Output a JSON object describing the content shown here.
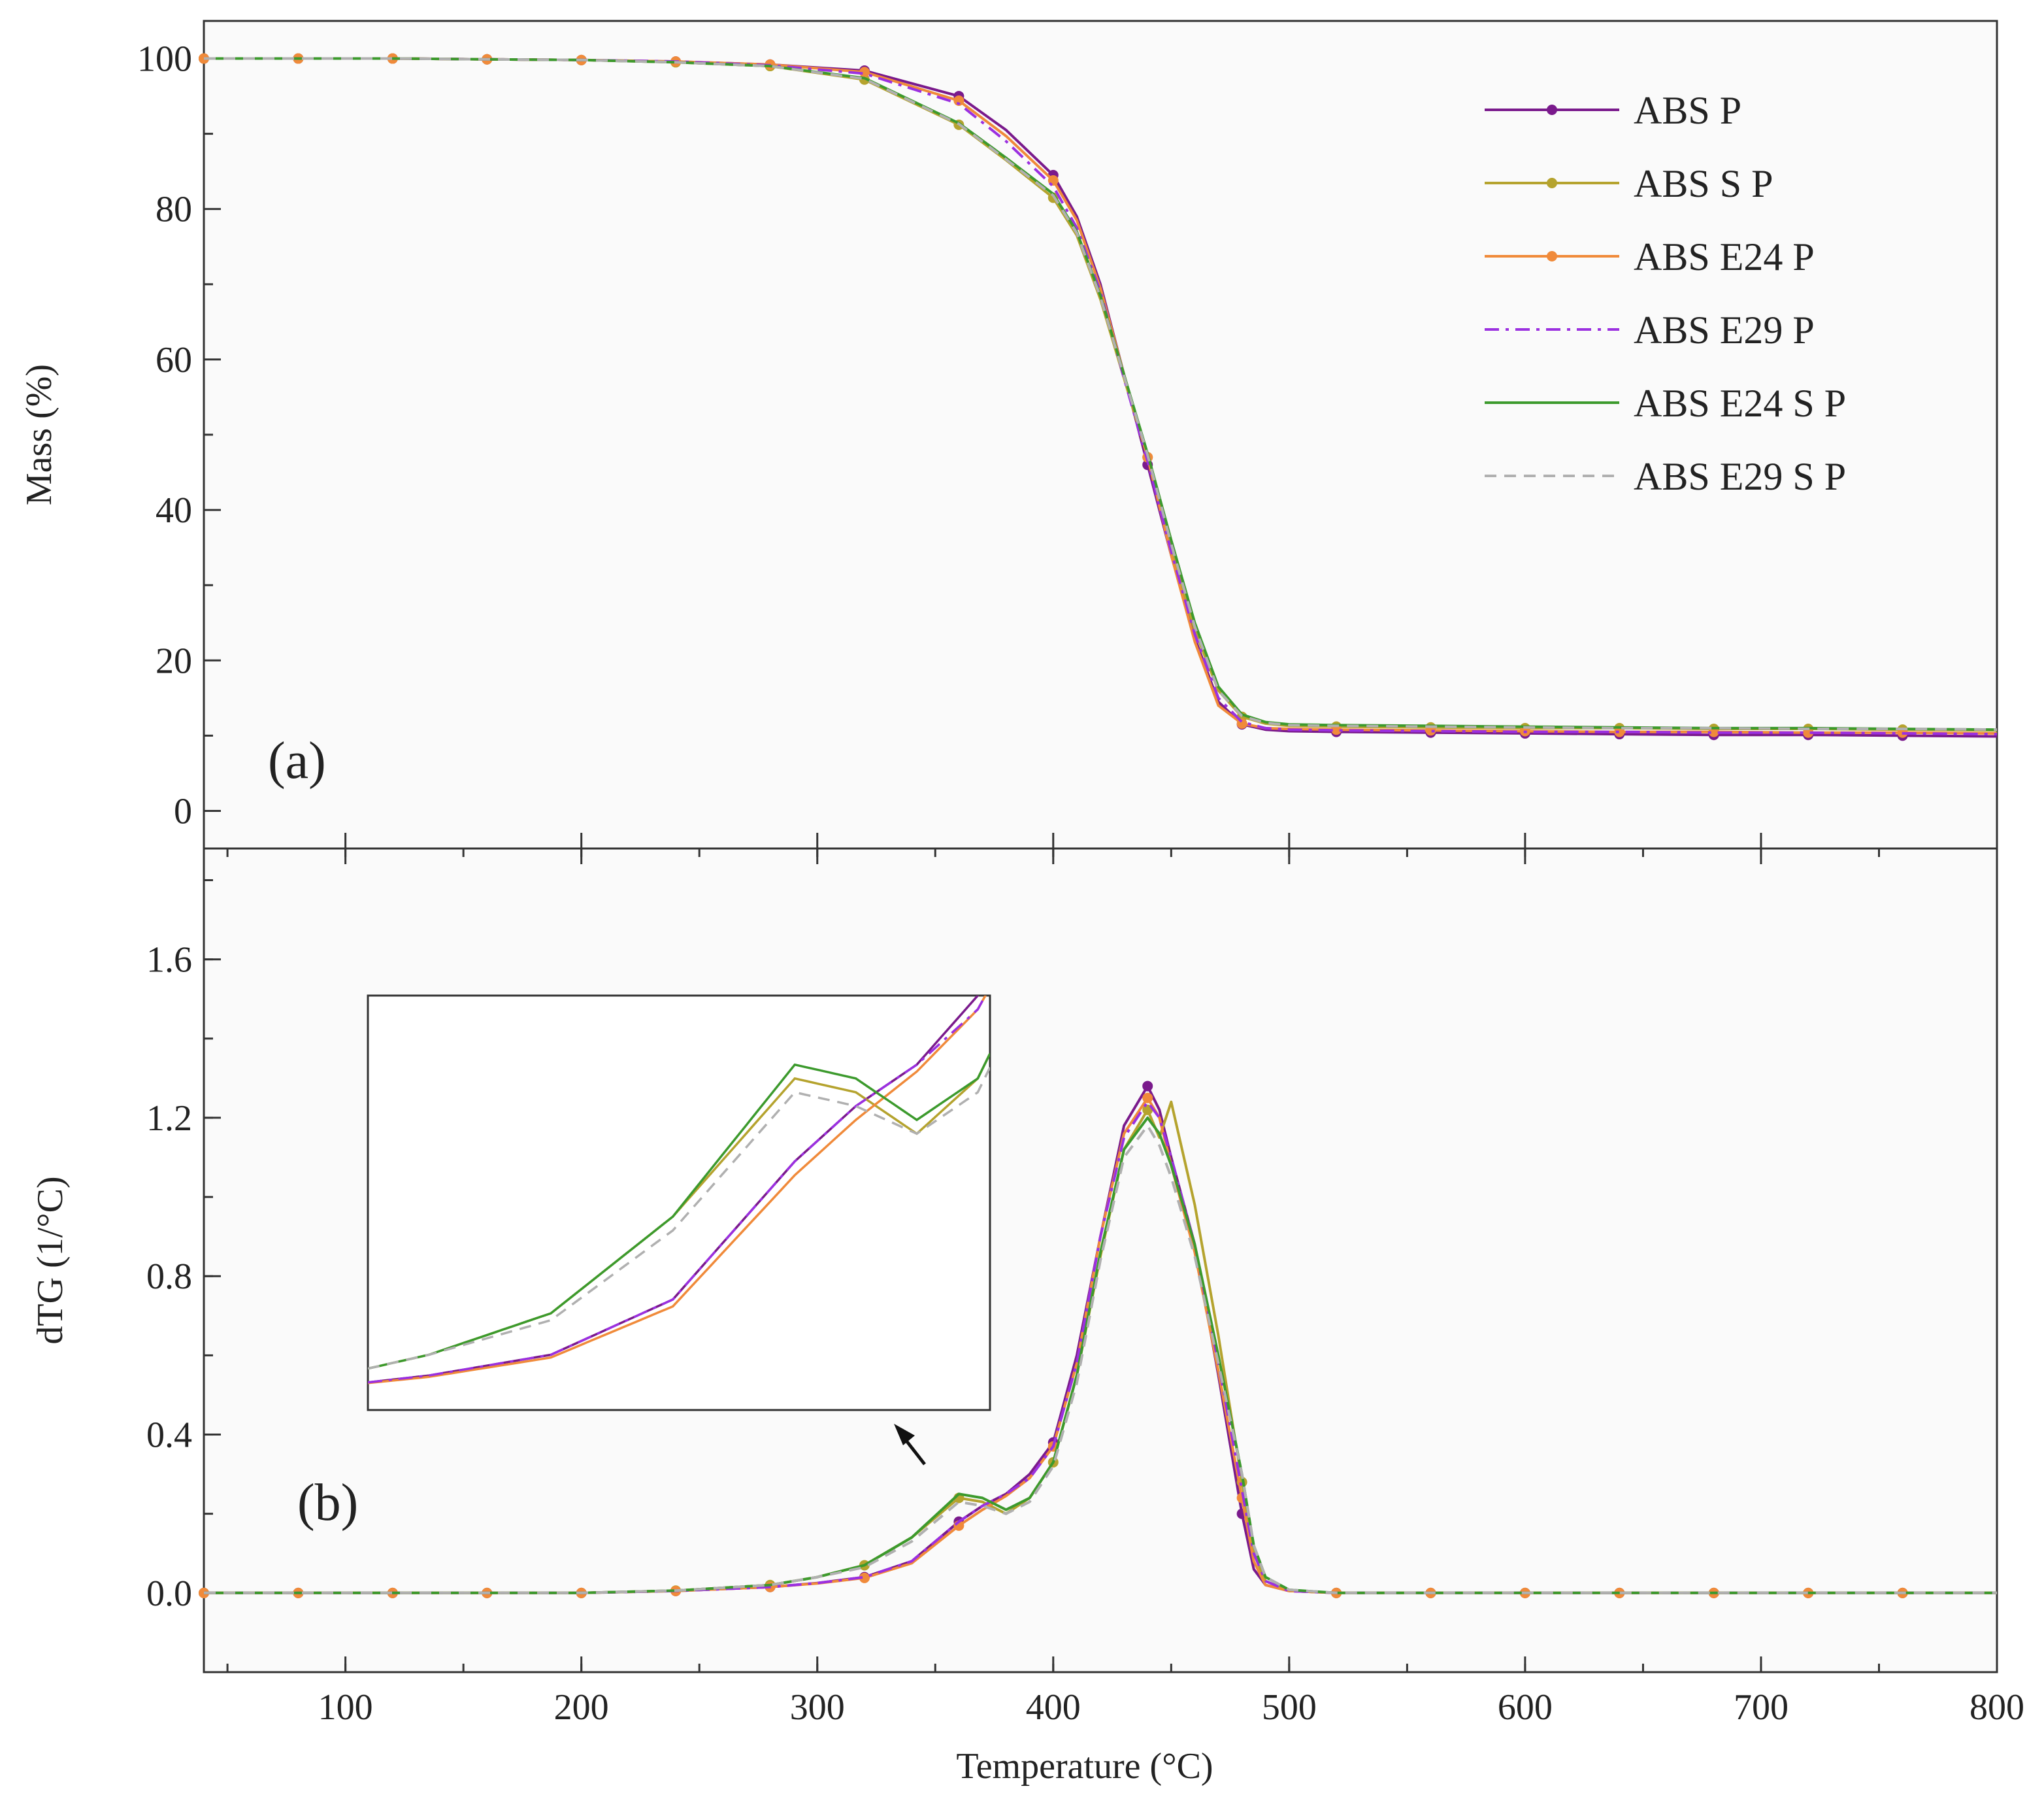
{
  "chart_data": [
    {
      "panel": "a",
      "panel_label": "(a)",
      "type": "line",
      "ylabel": "Mass (%)",
      "xlabel": "Temperature (°C)",
      "xlim": [
        40,
        800
      ],
      "ylim": [
        -5,
        105
      ],
      "yticks": [
        0,
        20,
        40,
        60,
        80,
        100
      ],
      "grid": false,
      "legend_position": "top-right",
      "series": [
        {
          "name": "ABS P",
          "color": "#7a1a8c",
          "dash": "solid",
          "marker": "dot",
          "x": [
            40,
            80,
            120,
            160,
            200,
            240,
            280,
            320,
            360,
            380,
            400,
            410,
            420,
            430,
            440,
            450,
            460,
            470,
            480,
            490,
            500,
            520,
            560,
            600,
            640,
            680,
            720,
            760,
            800
          ],
          "y": [
            100,
            100,
            100,
            99.9,
            99.8,
            99.6,
            99.2,
            98.4,
            95.0,
            90.5,
            84.5,
            79,
            70,
            58,
            46,
            34,
            23,
            14.5,
            11.5,
            10.8,
            10.6,
            10.5,
            10.4,
            10.3,
            10.2,
            10.1,
            10.1,
            10.0,
            9.9
          ]
        },
        {
          "name": "ABS S P",
          "color": "#b5a32e",
          "dash": "solid",
          "marker": "square",
          "x": [
            40,
            80,
            120,
            160,
            200,
            240,
            280,
            320,
            360,
            380,
            400,
            410,
            420,
            430,
            440,
            450,
            460,
            470,
            480,
            490,
            500,
            520,
            560,
            600,
            640,
            680,
            720,
            760,
            800
          ],
          "y": [
            100,
            100,
            100,
            99.9,
            99.8,
            99.5,
            99.0,
            97.2,
            91.2,
            86.5,
            81.5,
            76.5,
            68,
            57.5,
            47,
            35,
            24,
            16,
            12.5,
            11.6,
            11.3,
            11.2,
            11.1,
            11.0,
            11.0,
            10.9,
            10.9,
            10.8,
            10.7
          ]
        },
        {
          "name": "ABS E24 P",
          "color": "#f08a3a",
          "dash": "solid",
          "marker": "triangle",
          "x": [
            40,
            80,
            120,
            160,
            200,
            240,
            280,
            320,
            360,
            380,
            400,
            410,
            420,
            430,
            440,
            450,
            460,
            470,
            480,
            490,
            500,
            520,
            560,
            600,
            640,
            680,
            720,
            760,
            800
          ],
          "y": [
            100,
            100,
            100,
            99.9,
            99.8,
            99.6,
            99.2,
            98.2,
            94.4,
            89.7,
            83.8,
            78.5,
            69.5,
            58,
            47,
            34,
            22.5,
            14,
            11.6,
            11.0,
            10.9,
            10.8,
            10.7,
            10.6,
            10.5,
            10.5,
            10.4,
            10.4,
            10.3
          ]
        },
        {
          "name": "ABS E29 P",
          "color": "#9b30e0",
          "dash": "dashdot",
          "marker": "none",
          "x": [
            40,
            80,
            120,
            160,
            200,
            240,
            280,
            320,
            360,
            380,
            400,
            410,
            420,
            430,
            440,
            450,
            460,
            470,
            480,
            490,
            500,
            520,
            560,
            600,
            640,
            680,
            720,
            760,
            800
          ],
          "y": [
            100,
            100,
            100,
            99.9,
            99.8,
            99.6,
            99.1,
            98.0,
            94.0,
            89.0,
            83.0,
            77.5,
            69,
            57.5,
            46.5,
            34.5,
            23.5,
            15,
            11.8,
            11.0,
            10.8,
            10.7,
            10.6,
            10.5,
            10.5,
            10.4,
            10.4,
            10.3,
            10.2
          ]
        },
        {
          "name": "ABS E24 S P",
          "color": "#3c9a2d",
          "dash": "solid",
          "marker": "none",
          "x": [
            40,
            80,
            120,
            160,
            200,
            240,
            280,
            320,
            360,
            380,
            400,
            410,
            420,
            430,
            440,
            450,
            460,
            470,
            480,
            490,
            500,
            520,
            560,
            600,
            640,
            680,
            720,
            760,
            800
          ],
          "y": [
            100,
            100,
            100,
            99.9,
            99.8,
            99.5,
            99.0,
            97.4,
            91.4,
            86.8,
            82.0,
            77,
            68.5,
            58,
            47.5,
            36,
            25,
            16.5,
            12.8,
            11.8,
            11.5,
            11.4,
            11.3,
            11.2,
            11.1,
            11.0,
            11.0,
            10.9,
            10.8
          ]
        },
        {
          "name": "ABS E29 S P",
          "color": "#b0b0b0",
          "dash": "dashed",
          "marker": "none",
          "x": [
            40,
            80,
            120,
            160,
            200,
            240,
            280,
            320,
            360,
            380,
            400,
            410,
            420,
            430,
            440,
            450,
            460,
            470,
            480,
            490,
            500,
            520,
            560,
            600,
            640,
            680,
            720,
            760,
            800
          ],
          "y": [
            100,
            100,
            100,
            99.9,
            99.8,
            99.5,
            99.0,
            97.3,
            91.3,
            86.6,
            81.8,
            76.8,
            68.3,
            57.8,
            47.3,
            35.5,
            24.5,
            16,
            12.6,
            11.7,
            11.4,
            11.3,
            11.2,
            11.1,
            11.0,
            11.0,
            10.9,
            10.9,
            10.8
          ]
        }
      ]
    },
    {
      "panel": "b",
      "panel_label": "(b)",
      "type": "line",
      "ylabel": "dTG (1/°C)",
      "xlabel": "Temperature (°C)",
      "xlim": [
        40,
        800
      ],
      "ylim": [
        -0.2,
        1.88
      ],
      "yticks": [
        0.0,
        0.4,
        0.8,
        1.2,
        1.6
      ],
      "ytick_labels": [
        "0.0",
        "0.4",
        "0.8",
        "1.2",
        "1.6"
      ],
      "xticks": [
        100,
        200,
        300,
        400,
        500,
        600,
        700,
        800
      ],
      "grid": false,
      "series": [
        {
          "name": "ABS P",
          "color": "#7a1a8c",
          "dash": "solid",
          "marker": "dot",
          "x": [
            40,
            80,
            120,
            160,
            200,
            240,
            280,
            300,
            320,
            340,
            360,
            370,
            380,
            390,
            400,
            410,
            420,
            430,
            440,
            445,
            450,
            460,
            470,
            480,
            485,
            490,
            500,
            520,
            560,
            600,
            640,
            680,
            720,
            760,
            800
          ],
          "y": [
            0,
            0,
            0,
            0,
            0,
            0.005,
            0.015,
            0.025,
            0.04,
            0.08,
            0.18,
            0.22,
            0.25,
            0.3,
            0.38,
            0.6,
            0.9,
            1.18,
            1.28,
            1.22,
            1.1,
            0.88,
            0.55,
            0.2,
            0.06,
            0.02,
            0.005,
            0,
            0,
            0,
            0,
            0,
            0,
            0,
            0
          ]
        },
        {
          "name": "ABS S P",
          "color": "#b5a32e",
          "dash": "solid",
          "marker": "square",
          "x": [
            40,
            80,
            120,
            160,
            200,
            240,
            280,
            300,
            320,
            340,
            360,
            370,
            380,
            390,
            400,
            410,
            420,
            430,
            440,
            445,
            450,
            460,
            470,
            480,
            485,
            490,
            500,
            520,
            560,
            600,
            640,
            680,
            720,
            760,
            800
          ],
          "y": [
            0,
            0,
            0,
            0,
            0,
            0.006,
            0.02,
            0.04,
            0.07,
            0.14,
            0.24,
            0.23,
            0.2,
            0.24,
            0.33,
            0.55,
            0.85,
            1.12,
            1.22,
            1.15,
            1.24,
            0.98,
            0.65,
            0.28,
            0.1,
            0.03,
            0.005,
            0,
            0,
            0,
            0,
            0,
            0,
            0,
            0
          ]
        },
        {
          "name": "ABS E24 P",
          "color": "#f08a3a",
          "dash": "solid",
          "marker": "triangle",
          "x": [
            40,
            80,
            120,
            160,
            200,
            240,
            280,
            300,
            320,
            340,
            360,
            370,
            380,
            390,
            400,
            410,
            420,
            430,
            440,
            445,
            450,
            460,
            470,
            480,
            485,
            490,
            500,
            520,
            560,
            600,
            640,
            680,
            720,
            760,
            800
          ],
          "y": [
            0,
            0,
            0,
            0,
            0,
            0.005,
            0.015,
            0.024,
            0.038,
            0.075,
            0.17,
            0.21,
            0.245,
            0.29,
            0.37,
            0.58,
            0.9,
            1.16,
            1.25,
            1.2,
            1.08,
            0.86,
            0.56,
            0.24,
            0.08,
            0.02,
            0.005,
            0,
            0,
            0,
            0,
            0,
            0,
            0,
            0
          ]
        },
        {
          "name": "ABS E29 P",
          "color": "#9b30e0",
          "dash": "dashdot",
          "marker": "none",
          "x": [
            40,
            80,
            120,
            160,
            200,
            240,
            280,
            300,
            320,
            340,
            360,
            370,
            380,
            390,
            400,
            410,
            420,
            430,
            440,
            445,
            450,
            460,
            470,
            480,
            485,
            490,
            500,
            520,
            560,
            600,
            640,
            680,
            720,
            760,
            800
          ],
          "y": [
            0,
            0,
            0,
            0,
            0,
            0.005,
            0.015,
            0.025,
            0.04,
            0.08,
            0.18,
            0.22,
            0.25,
            0.29,
            0.37,
            0.58,
            0.9,
            1.15,
            1.24,
            1.2,
            1.1,
            0.88,
            0.58,
            0.26,
            0.1,
            0.03,
            0.005,
            0,
            0,
            0,
            0,
            0,
            0,
            0,
            0
          ]
        },
        {
          "name": "ABS E24 S P",
          "color": "#3c9a2d",
          "dash": "solid",
          "marker": "none",
          "x": [
            40,
            80,
            120,
            160,
            200,
            240,
            280,
            300,
            320,
            340,
            360,
            370,
            380,
            390,
            400,
            410,
            420,
            430,
            440,
            445,
            450,
            460,
            470,
            480,
            485,
            490,
            500,
            520,
            560,
            600,
            640,
            680,
            720,
            760,
            800
          ],
          "y": [
            0,
            0,
            0,
            0,
            0,
            0.006,
            0.02,
            0.04,
            0.07,
            0.14,
            0.25,
            0.24,
            0.21,
            0.24,
            0.33,
            0.55,
            0.86,
            1.12,
            1.2,
            1.16,
            1.08,
            0.88,
            0.6,
            0.3,
            0.12,
            0.04,
            0.008,
            0,
            0,
            0,
            0,
            0,
            0,
            0,
            0
          ]
        },
        {
          "name": "ABS E29 S P",
          "color": "#b0b0b0",
          "dash": "dashed",
          "marker": "none",
          "x": [
            40,
            80,
            120,
            160,
            200,
            240,
            280,
            300,
            320,
            340,
            360,
            370,
            380,
            390,
            400,
            410,
            420,
            430,
            440,
            445,
            450,
            460,
            470,
            480,
            485,
            490,
            500,
            520,
            560,
            600,
            640,
            680,
            720,
            760,
            800
          ],
          "y": [
            0,
            0,
            0,
            0,
            0,
            0.006,
            0.02,
            0.04,
            0.065,
            0.13,
            0.23,
            0.22,
            0.2,
            0.23,
            0.32,
            0.53,
            0.84,
            1.1,
            1.18,
            1.13,
            1.05,
            0.85,
            0.58,
            0.3,
            0.12,
            0.04,
            0.008,
            0,
            0,
            0,
            0,
            0,
            0,
            0,
            0
          ]
        }
      ],
      "inset": {
        "description_region": "magnified dTG 280-390 °C",
        "xlim": [
          290,
          392
        ],
        "ylim": [
          0.0,
          0.3
        ]
      }
    }
  ],
  "xticks": [
    100,
    200,
    300,
    400,
    500,
    600,
    700,
    800
  ],
  "xtick_labels": [
    "100",
    "200",
    "300",
    "400",
    "500",
    "600",
    "700",
    "800"
  ],
  "ytick_labels_a": [
    "0",
    "20",
    "40",
    "60",
    "80",
    "100"
  ]
}
